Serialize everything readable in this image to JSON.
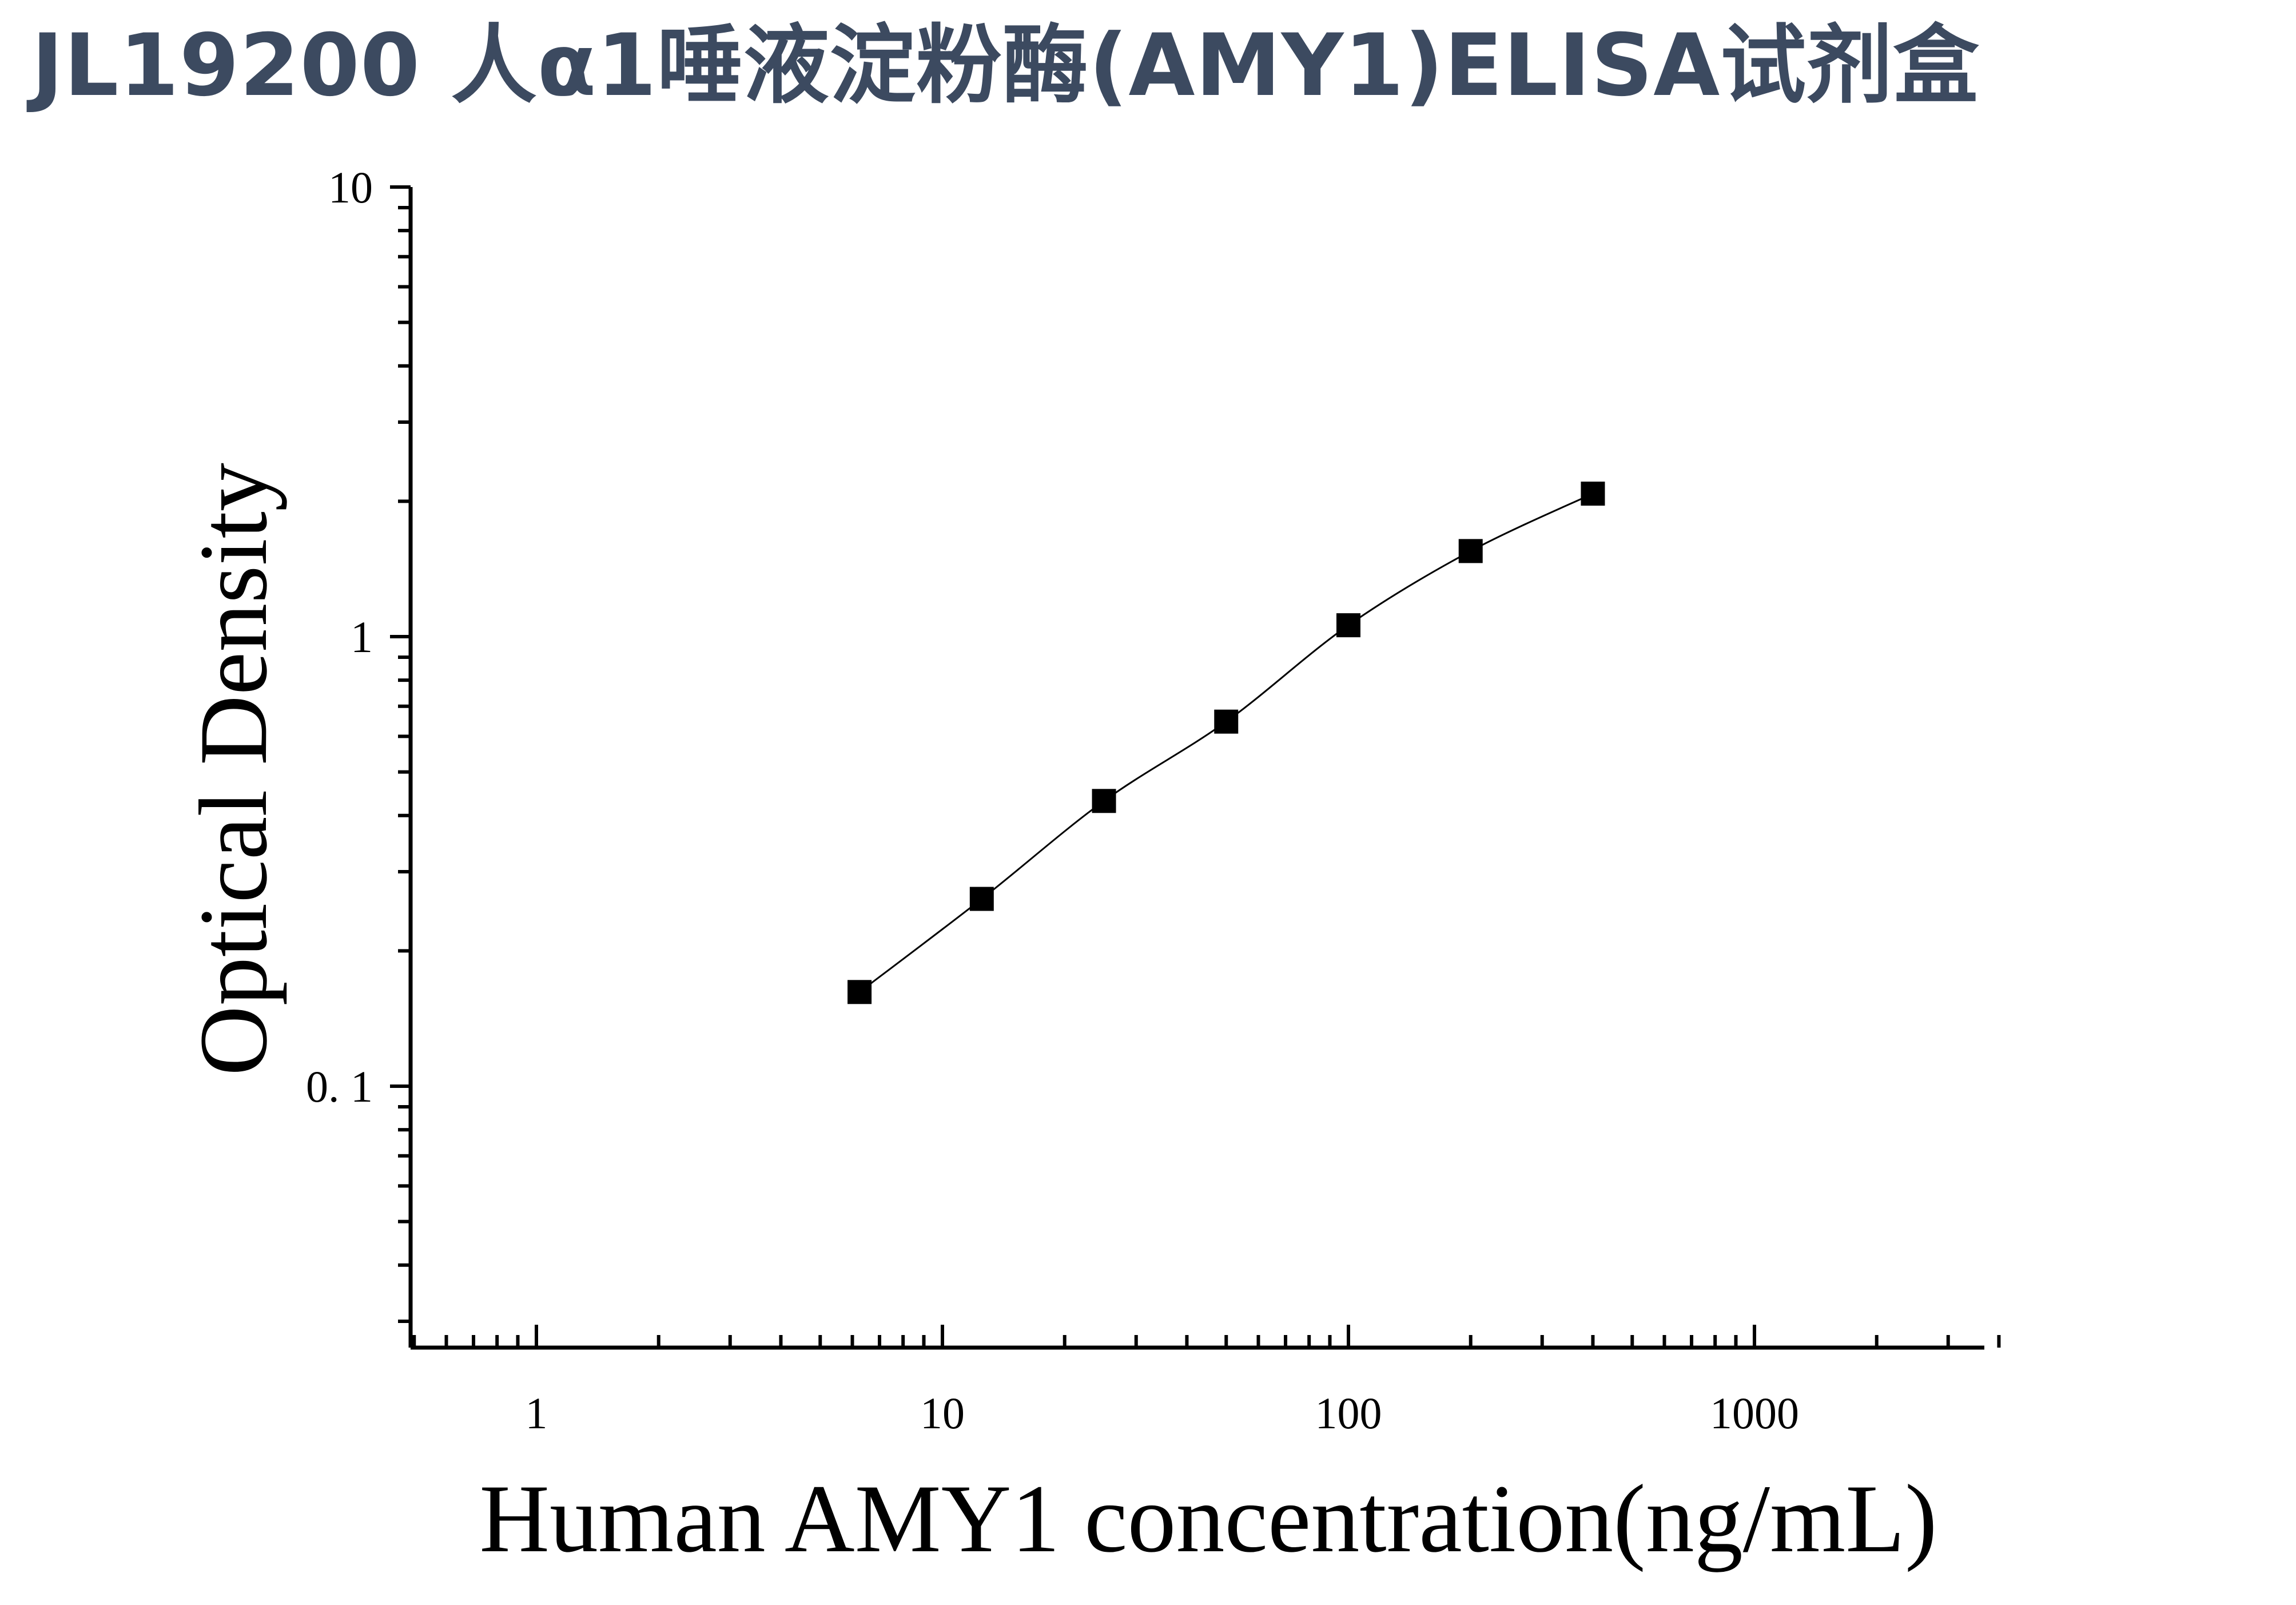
{
  "page": {
    "title": "JL19200 人α1唾液淀粉酶(AMY1)ELISA试剂盒",
    "title_color": "#3c4a60"
  },
  "chart_data": {
    "type": "scatter",
    "title": "",
    "xlabel": "Human AMY1 concentration(ng/mL)",
    "ylabel": "Optical Density",
    "x_scale": "log",
    "y_scale": "log",
    "xlim": [
      0.5,
      4000
    ],
    "ylim": [
      0.025,
      10
    ],
    "x_ticks": [
      {
        "value": 1,
        "label": "1"
      },
      {
        "value": 10,
        "label": "10"
      },
      {
        "value": 100,
        "label": "100"
      },
      {
        "value": 1000,
        "label": "1000"
      }
    ],
    "y_ticks": [
      {
        "value": 0.1,
        "label": "0. 1"
      },
      {
        "value": 1,
        "label": "1"
      },
      {
        "value": 10,
        "label": "10"
      }
    ],
    "grid": false,
    "series": [
      {
        "x": [
          6.25,
          12.5,
          25,
          50,
          100,
          200,
          400
        ],
        "y": [
          0.162,
          0.261,
          0.431,
          0.647,
          1.06,
          1.55,
          2.08
        ],
        "marker": "square",
        "color": "#000000",
        "fit_line": true
      }
    ]
  }
}
